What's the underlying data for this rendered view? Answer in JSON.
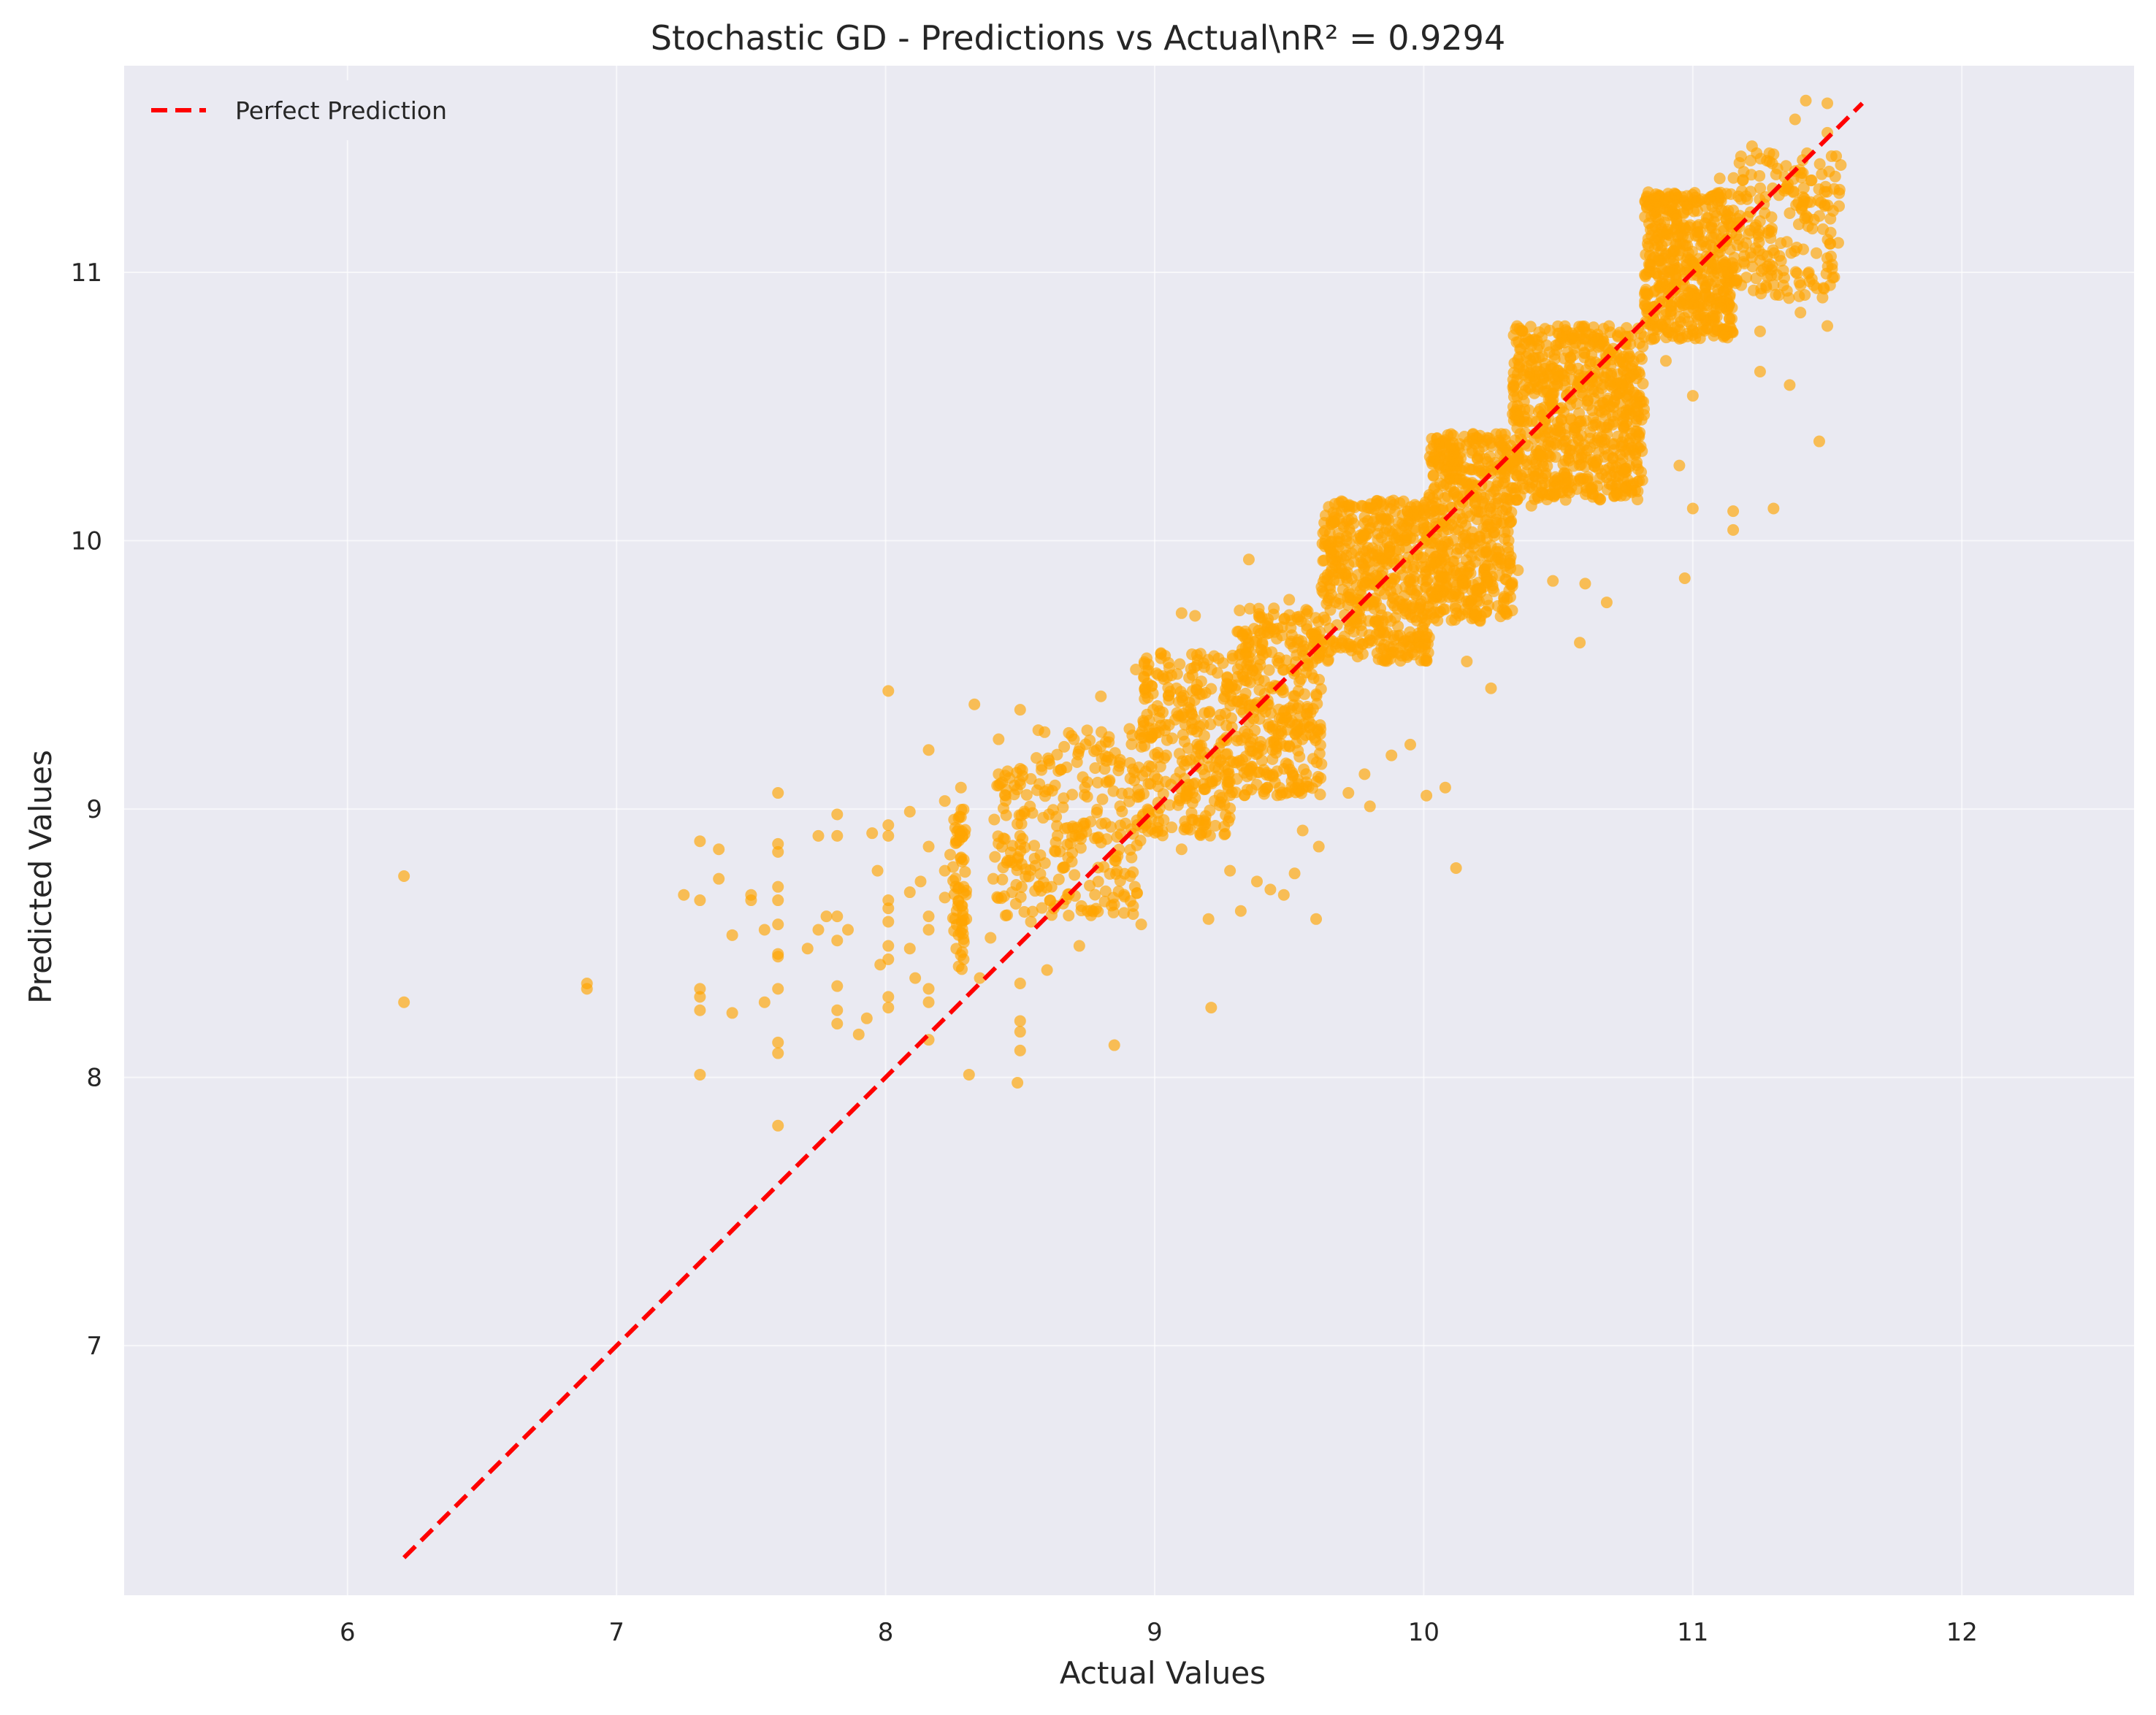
{
  "chart_data": {
    "type": "scatter",
    "title": "Stochastic GD - Predictions vs Actual\\nR² = 0.9294",
    "xlabel": "Actual Values",
    "ylabel": "Predicted Values",
    "xlim": [
      5.17,
      12.64
    ],
    "ylim": [
      6.07,
      11.77
    ],
    "xticks": [
      6,
      7,
      8,
      9,
      10,
      11,
      12
    ],
    "yticks": [
      7,
      8,
      9,
      10,
      11
    ],
    "grid": true,
    "background": "#eaeaf2",
    "gridColor": "#ffffff",
    "legend": {
      "position": "top-left",
      "entries": [
        "Perfect Prediction"
      ]
    },
    "series": [
      {
        "type": "scatter",
        "color": "#ffa500",
        "points": [
          [
            6.21,
            8.75
          ],
          [
            6.21,
            8.28
          ],
          [
            6.89,
            8.35
          ],
          [
            6.89,
            8.33
          ],
          [
            7.25,
            8.68
          ],
          [
            7.31,
            8.88
          ],
          [
            7.31,
            8.66
          ],
          [
            7.31,
            8.33
          ],
          [
            7.31,
            8.3
          ],
          [
            7.31,
            8.25
          ],
          [
            7.31,
            8.01
          ],
          [
            7.38,
            8.85
          ],
          [
            7.38,
            8.74
          ],
          [
            7.43,
            8.53
          ],
          [
            7.43,
            8.24
          ],
          [
            7.5,
            8.68
          ],
          [
            7.5,
            8.66
          ],
          [
            7.55,
            8.55
          ],
          [
            7.55,
            8.28
          ],
          [
            7.6,
            9.06
          ],
          [
            7.6,
            8.87
          ],
          [
            7.6,
            8.84
          ],
          [
            7.6,
            8.71
          ],
          [
            7.6,
            8.66
          ],
          [
            7.6,
            8.57
          ],
          [
            7.6,
            8.46
          ],
          [
            7.6,
            8.45
          ],
          [
            7.6,
            8.33
          ],
          [
            7.6,
            8.13
          ],
          [
            7.6,
            8.09
          ],
          [
            7.6,
            7.82
          ],
          [
            7.71,
            8.48
          ],
          [
            7.75,
            8.55
          ],
          [
            7.75,
            8.9
          ],
          [
            7.78,
            8.6
          ],
          [
            7.82,
            8.98
          ],
          [
            7.82,
            8.9
          ],
          [
            7.82,
            8.6
          ],
          [
            7.82,
            8.51
          ],
          [
            7.82,
            8.34
          ],
          [
            7.82,
            8.25
          ],
          [
            7.82,
            8.2
          ],
          [
            7.86,
            8.55
          ],
          [
            7.9,
            8.16
          ],
          [
            7.93,
            8.22
          ],
          [
            7.95,
            8.91
          ],
          [
            7.97,
            8.77
          ],
          [
            7.98,
            8.42
          ],
          [
            8.01,
            9.44
          ],
          [
            8.01,
            8.94
          ],
          [
            8.01,
            8.9
          ],
          [
            8.01,
            8.66
          ],
          [
            8.01,
            8.63
          ],
          [
            8.01,
            8.58
          ],
          [
            8.01,
            8.49
          ],
          [
            8.01,
            8.44
          ],
          [
            8.01,
            8.3
          ],
          [
            8.01,
            8.26
          ],
          [
            8.09,
            8.99
          ],
          [
            8.09,
            8.69
          ],
          [
            8.09,
            8.48
          ],
          [
            8.11,
            8.37
          ],
          [
            8.13,
            8.73
          ],
          [
            8.16,
            9.22
          ],
          [
            8.16,
            8.86
          ],
          [
            8.16,
            8.6
          ],
          [
            8.16,
            8.55
          ],
          [
            8.16,
            8.33
          ],
          [
            8.16,
            8.28
          ],
          [
            8.16,
            8.14
          ],
          [
            8.22,
            9.03
          ],
          [
            8.22,
            8.77
          ],
          [
            8.22,
            8.67
          ],
          [
            8.24,
            8.83
          ],
          [
            8.28,
            9.08
          ],
          [
            8.28,
            8.97
          ],
          [
            8.29,
            8.71
          ],
          [
            8.29,
            8.44
          ],
          [
            8.3,
            8.59
          ],
          [
            8.31,
            8.01
          ],
          [
            8.33,
            9.39
          ],
          [
            8.35,
            8.37
          ],
          [
            8.39,
            8.52
          ],
          [
            8.4,
            8.74
          ],
          [
            8.42,
            9.26
          ],
          [
            8.42,
            9.13
          ],
          [
            8.45,
            8.8
          ],
          [
            8.47,
            8.69
          ],
          [
            8.49,
            7.98
          ],
          [
            8.5,
            9.37
          ],
          [
            8.5,
            9.15
          ],
          [
            8.5,
            8.9
          ],
          [
            8.5,
            8.21
          ],
          [
            8.5,
            8.17
          ],
          [
            8.5,
            8.1
          ],
          [
            8.5,
            8.35
          ],
          [
            8.54,
            8.58
          ],
          [
            8.57,
            8.71
          ],
          [
            8.58,
            9.16
          ],
          [
            8.6,
            8.4
          ],
          [
            8.63,
            8.64
          ],
          [
            8.7,
            9.26
          ],
          [
            8.72,
            8.49
          ],
          [
            8.75,
            8.62
          ],
          [
            8.8,
            9.42
          ],
          [
            8.82,
            9.1
          ],
          [
            8.85,
            8.12
          ],
          [
            8.86,
            8.77
          ],
          [
            8.93,
            9.52
          ],
          [
            8.95,
            8.57
          ],
          [
            8.96,
            9.49
          ],
          [
            8.98,
            9.33
          ],
          [
            9.1,
            9.73
          ],
          [
            9.1,
            8.85
          ],
          [
            9.15,
            9.72
          ],
          [
            9.2,
            8.59
          ],
          [
            9.21,
            8.26
          ],
          [
            9.28,
            8.77
          ],
          [
            9.32,
            8.62
          ],
          [
            9.35,
            9.93
          ],
          [
            9.38,
            8.73
          ],
          [
            9.4,
            9.62
          ],
          [
            9.43,
            8.7
          ],
          [
            9.48,
            8.68
          ],
          [
            9.5,
            9.78
          ],
          [
            9.52,
            8.76
          ],
          [
            9.55,
            8.92
          ],
          [
            9.6,
            8.59
          ],
          [
            9.61,
            8.86
          ],
          [
            9.72,
            9.06
          ],
          [
            9.78,
            9.13
          ],
          [
            9.8,
            9.01
          ],
          [
            9.88,
            9.2
          ],
          [
            9.95,
            9.24
          ],
          [
            10.01,
            9.05
          ],
          [
            10.03,
            10.38
          ],
          [
            10.08,
            9.08
          ],
          [
            10.12,
            8.78
          ],
          [
            10.16,
            9.55
          ],
          [
            10.25,
            9.45
          ],
          [
            10.35,
            9.89
          ],
          [
            10.4,
            10.13
          ],
          [
            10.48,
            9.85
          ],
          [
            10.58,
            9.62
          ],
          [
            10.6,
            9.84
          ],
          [
            10.68,
            9.77
          ],
          [
            10.72,
            10.62
          ],
          [
            10.9,
            10.67
          ],
          [
            10.95,
            10.28
          ],
          [
            10.97,
            9.86
          ],
          [
            11.0,
            10.54
          ],
          [
            11.0,
            10.12
          ],
          [
            11.15,
            10.04
          ],
          [
            11.15,
            10.11
          ],
          [
            11.25,
            10.63
          ],
          [
            11.3,
            10.12
          ],
          [
            11.36,
            10.58
          ],
          [
            11.47,
            10.37
          ],
          [
            11.15,
            11.02
          ],
          [
            11.25,
            10.78
          ],
          [
            11.4,
            10.85
          ],
          [
            11.5,
            10.8
          ],
          [
            11.52,
            10.98
          ],
          [
            11.5,
            11.52
          ],
          [
            11.55,
            11.4
          ],
          [
            11.3,
            11.44
          ],
          [
            11.38,
            11.57
          ],
          [
            11.42,
            11.64
          ],
          [
            11.5,
            11.63
          ],
          [
            11.22,
            11.47
          ],
          [
            11.1,
            11.35
          ]
        ],
        "clusters": [
          {
            "x": [
              8.25,
              8.3
            ],
            "y": [
              8.4,
              9.0
            ],
            "n": 60
          },
          {
            "x": [
              8.4,
              8.55
            ],
            "y": [
              8.6,
              9.15
            ],
            "n": 70
          },
          {
            "x": [
              8.55,
              8.95
            ],
            "y": [
              8.6,
              9.3
            ],
            "n": 200
          },
          {
            "x": [
              8.95,
              9.3
            ],
            "y": [
              8.9,
              9.6
            ],
            "n": 300
          },
          {
            "x": [
              9.3,
              9.62
            ],
            "y": [
              9.05,
              9.75
            ],
            "n": 350
          },
          {
            "x": [
              9.62,
              10.02
            ],
            "y": [
              9.55,
              10.15
            ],
            "n": 500
          },
          {
            "x": [
              10.02,
              10.33
            ],
            "y": [
              9.7,
              10.4
            ],
            "n": 500
          },
          {
            "x": [
              10.33,
              10.82
            ],
            "y": [
              10.15,
              10.8
            ],
            "n": 700
          },
          {
            "x": [
              10.82,
              11.15
            ],
            "y": [
              10.75,
              11.3
            ],
            "n": 500
          },
          {
            "x": [
              11.15,
              11.55
            ],
            "y": [
              10.9,
              11.45
            ],
            "n": 200
          }
        ]
      },
      {
        "type": "line",
        "name": "Perfect Prediction",
        "color": "#ff0000",
        "dashed": true,
        "x": [
          6.21,
          11.63
        ],
        "y": [
          6.21,
          11.63
        ]
      }
    ]
  }
}
